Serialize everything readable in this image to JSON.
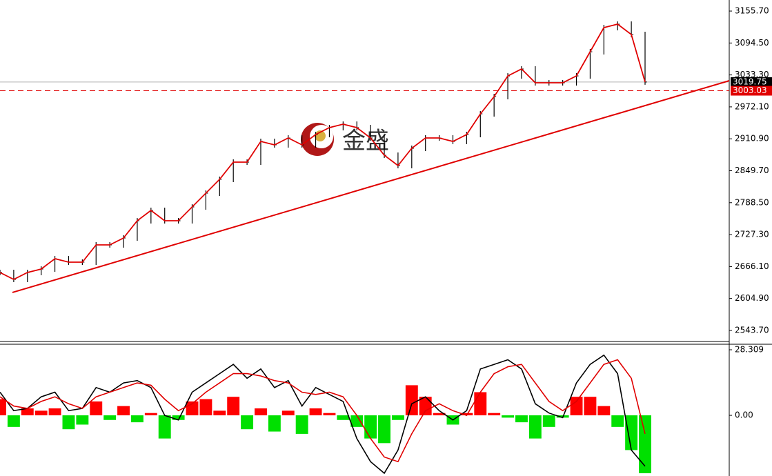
{
  "chart_data": [
    {
      "type": "price",
      "color": "#000000",
      "line_color": "#e00000",
      "values": [
        2654.7,
        2641.5,
        2654.7,
        2661.3,
        2681.1,
        2674.5,
        2674.5,
        2707.6,
        2707.6,
        2720.8,
        2753.8,
        2773.7,
        2753.8,
        2753.8,
        2780.3,
        2806.7,
        2833.2,
        2866.2,
        2866.2,
        2905.9,
        2899.3,
        2912.5,
        2899.3,
        2919.1,
        2932.3,
        2938.9,
        2932.3,
        2912.5,
        2879.4,
        2859.6,
        2892.6,
        2912.5,
        2912.5,
        2905.9,
        2919.1,
        2958.7,
        2991.8,
        3031.4,
        3044.7,
        3018.2,
        3018.2,
        3018.2,
        3031.4,
        3077.7,
        3124.0,
        3130.6,
        3110.8,
        3019.75
      ],
      "ylim": [
        2522.5,
        3176.9
      ],
      "yticks": [
        {
          "value": 3155.7,
          "label": "3155.70"
        },
        {
          "value": 3094.5,
          "label": "3094.50"
        },
        {
          "value": 3033.3,
          "label": "3033.30"
        },
        {
          "value": 2972.1,
          "label": "2972.10"
        },
        {
          "value": 2910.9,
          "label": "2910.90"
        },
        {
          "value": 2849.7,
          "label": "2849.70"
        },
        {
          "value": 2788.5,
          "label": "2788.50"
        },
        {
          "value": 2727.3,
          "label": "2727.30"
        },
        {
          "value": 2666.1,
          "label": "2666.10"
        },
        {
          "value": 2604.9,
          "label": "2604.90"
        },
        {
          "value": 2543.7,
          "label": "2543.70"
        }
      ],
      "trendline": {
        "color": "#e00000",
        "values": [
          2616.4,
          3022.2
        ]
      },
      "price_lines": [
        {
          "value": 3019.75,
          "color": "#000000",
          "line_color": "#b0b0b0"
        },
        {
          "value": 3003.03,
          "color": "#e00000",
          "line_color": "#e00000"
        }
      ],
      "watermark": "金盛"
    },
    {
      "type": "macd",
      "positive_color": "#ff0000",
      "negative_color": "#00e000",
      "values": [
        7,
        -5,
        3,
        2,
        3,
        -6,
        -4,
        6,
        -2,
        4,
        -3,
        1,
        -10,
        -2,
        6,
        7,
        2,
        8,
        -6,
        3,
        -7,
        2,
        -8,
        3,
        1,
        -2,
        -5,
        -10,
        -12,
        -2,
        13,
        8,
        1,
        -4,
        1,
        10,
        1,
        -1,
        -3,
        -10,
        -5,
        -1,
        8,
        8,
        4,
        -5,
        -15,
        -25
      ],
      "lines": [
        {
          "color": "#000000",
          "values": [
            10,
            2,
            3,
            8,
            10,
            2,
            3,
            12,
            10,
            14,
            15,
            12,
            0,
            -2,
            10,
            14,
            18,
            22,
            16,
            20,
            12,
            15,
            4,
            12,
            9,
            6,
            -10,
            -20,
            -25,
            -15,
            5,
            8,
            2,
            -2,
            2,
            20,
            22,
            24,
            20,
            5,
            1,
            -1,
            14,
            22,
            26,
            18,
            -15,
            -22
          ]
        },
        {
          "color": "#e00000",
          "values": [
            8,
            4,
            3,
            6,
            8,
            5,
            3,
            8,
            10,
            12,
            14,
            13,
            7,
            2,
            5,
            10,
            14,
            18,
            18,
            17,
            15,
            14,
            10,
            9,
            10,
            8,
            0,
            -10,
            -18,
            -20,
            -8,
            2,
            5,
            2,
            0,
            10,
            18,
            21,
            22,
            14,
            6,
            2,
            6,
            14,
            22,
            24,
            16,
            -8
          ]
        }
      ],
      "ylim": [
        -26.2,
        30.7
      ],
      "yticks": [
        28.309,
        {
          "value": 0,
          "label": "0.00"
        }
      ]
    }
  ]
}
